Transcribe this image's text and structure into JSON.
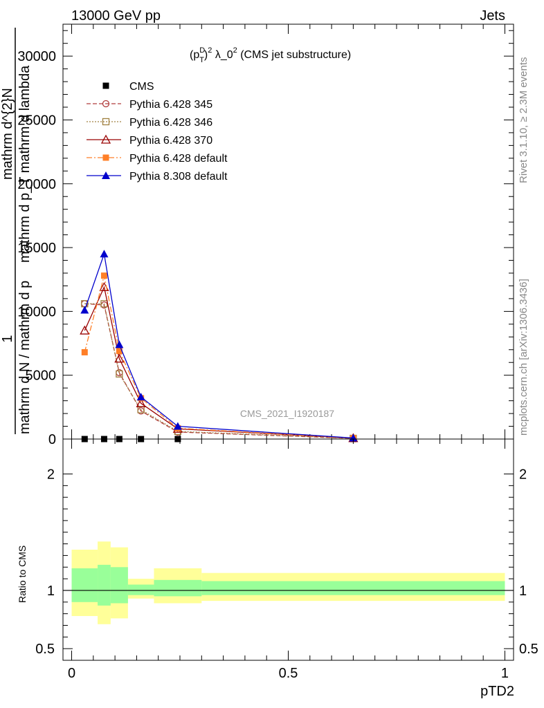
{
  "header": {
    "left": "13000 GeV pp",
    "right": "Jets"
  },
  "side_text": {
    "top": "Rivet 3.1.10, ≥ 2.3M events",
    "bottom": "mcplots.cern.ch [arXiv:1306.3436]"
  },
  "colors": {
    "cms": "#000000",
    "p345": "#b03a3a",
    "p346": "#a08040",
    "p370": "#990000",
    "p6def": "#ff7f27",
    "p8def": "#0000cc",
    "band_inner": "#99ff99",
    "band_outer": "#ffff99"
  },
  "chart_data": [
    {
      "type": "line",
      "title_parts": {
        "pre": "(p",
        "sup": "D",
        "sub": "T",
        "post1": ")",
        "sup2": "2",
        "post2": " λ_0",
        "sup3": "2",
        "post3": " (CMS jet substructure)"
      },
      "ylabel": {
        "numerator": "1",
        "denominator": "mathrm d N / mathrm d p",
        "extra": "mathrm d p_T mathrm d lambda",
        "dN": "mathrm d^{2}N"
      },
      "xlim": [
        -0.02,
        1.02
      ],
      "ylim": [
        0,
        32500
      ],
      "yticks": [
        0,
        5000,
        10000,
        15000,
        20000,
        25000,
        30000
      ],
      "ytick_labels": [
        "0",
        "5000",
        "10000",
        "15000",
        "20000",
        "25000",
        "30000"
      ],
      "watermark": "CMS_2021_I1920187",
      "x": [
        0.03,
        0.075,
        0.11,
        0.16,
        0.245,
        0.65
      ],
      "series": [
        {
          "name": "CMS",
          "key": "cms",
          "marker": "square-filled",
          "dash": "none",
          "values": [
            0,
            0,
            0,
            0,
            0,
            0
          ]
        },
        {
          "name": "Pythia 6.428 345",
          "key": "p345",
          "marker": "circle-open",
          "dash": "6,3",
          "values": [
            10600,
            10500,
            5200,
            2200,
            550,
            50
          ]
        },
        {
          "name": "Pythia 6.428 346",
          "key": "p346",
          "marker": "square-open",
          "dash": "2,2",
          "values": [
            10600,
            10600,
            5100,
            2300,
            600,
            55
          ]
        },
        {
          "name": "Pythia 6.428 370",
          "key": "p370",
          "marker": "triangle-open",
          "dash": "none",
          "values": [
            8500,
            11900,
            6300,
            2800,
            800,
            70
          ]
        },
        {
          "name": "Pythia 6.428 default",
          "key": "p6def",
          "marker": "square-filled",
          "dash": "8,3,2,3",
          "values": [
            6800,
            12800,
            6900,
            3200,
            850,
            70
          ]
        },
        {
          "name": "Pythia 8.308 default",
          "key": "p8def",
          "marker": "triangle-filled",
          "dash": "none",
          "values": [
            10100,
            14500,
            7400,
            3300,
            1000,
            80
          ]
        }
      ]
    },
    {
      "type": "area",
      "ylabel": "Ratio to CMS",
      "xlabel": "pTD2",
      "xlim": [
        -0.02,
        1.02
      ],
      "ylim": [
        0.4,
        2.3
      ],
      "yticks": [
        0.5,
        1,
        2
      ],
      "ytick_labels": [
        "0.5",
        "1",
        "2"
      ],
      "xticks": [
        0,
        0.5,
        1
      ],
      "xtick_labels": [
        "0",
        "0.5",
        "1"
      ],
      "bins": [
        {
          "lo": 0.0,
          "hi": 0.06,
          "inner": [
            0.9,
            1.19
          ],
          "outer": [
            0.78,
            1.35
          ]
        },
        {
          "lo": 0.06,
          "hi": 0.09,
          "inner": [
            0.87,
            1.22
          ],
          "outer": [
            0.71,
            1.42
          ]
        },
        {
          "lo": 0.09,
          "hi": 0.13,
          "inner": [
            0.89,
            1.2
          ],
          "outer": [
            0.76,
            1.37
          ]
        },
        {
          "lo": 0.13,
          "hi": 0.19,
          "inner": [
            0.96,
            1.05
          ],
          "outer": [
            0.93,
            1.1
          ]
        },
        {
          "lo": 0.19,
          "hi": 0.3,
          "inner": [
            0.95,
            1.09
          ],
          "outer": [
            0.89,
            1.19
          ]
        },
        {
          "lo": 0.3,
          "hi": 1.0,
          "inner": [
            0.96,
            1.08
          ],
          "outer": [
            0.91,
            1.15
          ]
        }
      ]
    }
  ]
}
